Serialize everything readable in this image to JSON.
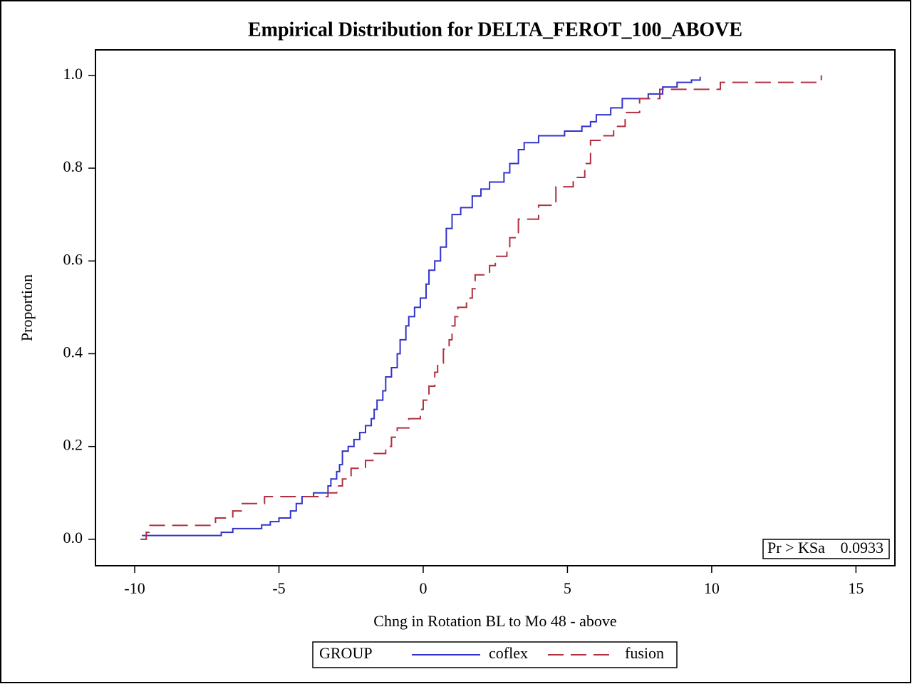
{
  "chart_data": {
    "type": "step",
    "title": "Empirical Distribution for DELTA_FEROT_100_ABOVE",
    "x_label": "Chng in Rotation BL to Mo 48 - above",
    "y_label": "Proportion",
    "legend_title": "GROUP",
    "annotation": {
      "label": "Pr > KSa",
      "value": "0.0933"
    },
    "xlim": [
      -11.36,
      16.35
    ],
    "ylim": [
      -0.057,
      1.055
    ],
    "xticks": [
      -10,
      -5,
      0,
      5,
      10,
      15
    ],
    "yticks": [
      {
        "value": 0,
        "label": "0.0"
      },
      0.2,
      0.4,
      0.6,
      0.8,
      {
        "value": 1,
        "label": "1.0"
      }
    ],
    "series": [
      {
        "name": "coflex",
        "color": "#3333cc",
        "dash": "solid",
        "x": [
          -9.75,
          -7.0,
          -6.6,
          -5.6,
          -5.3,
          -5.0,
          -4.6,
          -4.4,
          -4.2,
          -3.8,
          -3.3,
          -3.2,
          -3.0,
          -2.9,
          -2.8,
          -2.6,
          -2.4,
          -2.2,
          -2.0,
          -1.8,
          -1.7,
          -1.6,
          -1.4,
          -1.3,
          -1.1,
          -0.9,
          -0.8,
          -0.6,
          -0.5,
          -0.3,
          -0.1,
          0.1,
          0.2,
          0.4,
          0.6,
          0.8,
          1.0,
          1.3,
          1.7,
          2.0,
          2.3,
          2.8,
          3.0,
          3.3,
          3.5,
          4.0,
          4.9,
          5.5,
          5.8,
          6.0,
          6.5,
          6.9,
          7.8,
          8.3,
          8.8,
          9.3,
          9.6
        ],
        "values": [
          0.008,
          0.015,
          0.023,
          0.031,
          0.038,
          0.046,
          0.061,
          0.077,
          0.092,
          0.1,
          0.115,
          0.13,
          0.146,
          0.161,
          0.19,
          0.2,
          0.215,
          0.23,
          0.245,
          0.26,
          0.28,
          0.3,
          0.32,
          0.35,
          0.37,
          0.4,
          0.43,
          0.46,
          0.48,
          0.5,
          0.52,
          0.55,
          0.58,
          0.6,
          0.63,
          0.67,
          0.7,
          0.715,
          0.74,
          0.755,
          0.77,
          0.79,
          0.81,
          0.84,
          0.855,
          0.87,
          0.88,
          0.89,
          0.9,
          0.915,
          0.93,
          0.95,
          0.96,
          0.975,
          0.985,
          0.99,
          0.997
        ]
      },
      {
        "name": "fusion",
        "color": "#b03040",
        "dash": "dashed",
        "x": [
          -9.8,
          -9.6,
          -9.5,
          -7.2,
          -6.6,
          -6.3,
          -5.5,
          -3.3,
          -3.0,
          -2.8,
          -2.5,
          -2.0,
          -1.7,
          -1.3,
          -1.1,
          -0.9,
          -0.5,
          -0.1,
          0.0,
          0.2,
          0.4,
          0.5,
          0.7,
          0.9,
          1.0,
          1.1,
          1.2,
          1.5,
          1.7,
          1.8,
          2.3,
          2.5,
          2.9,
          3.0,
          3.3,
          4.0,
          4.6,
          5.2,
          5.6,
          5.8,
          6.2,
          6.6,
          7.0,
          7.5,
          8.2,
          10.3,
          13.8
        ],
        "values": [
          0.0,
          0.015,
          0.03,
          0.046,
          0.061,
          0.077,
          0.092,
          0.1,
          0.115,
          0.13,
          0.153,
          0.17,
          0.185,
          0.2,
          0.22,
          0.24,
          0.26,
          0.28,
          0.3,
          0.33,
          0.36,
          0.38,
          0.41,
          0.43,
          0.46,
          0.48,
          0.5,
          0.52,
          0.54,
          0.57,
          0.59,
          0.61,
          0.625,
          0.65,
          0.69,
          0.72,
          0.76,
          0.78,
          0.81,
          0.86,
          0.87,
          0.89,
          0.92,
          0.95,
          0.97,
          0.985,
          1.0
        ]
      }
    ]
  }
}
